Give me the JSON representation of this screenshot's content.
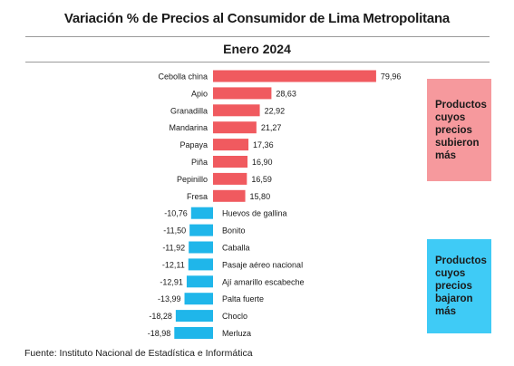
{
  "chart_data": {
    "type": "bar",
    "orientation": "horizontal",
    "title": "Variación %  de Precios al Consumidor de Lima Metropolitana",
    "subtitle": "Enero 2024",
    "categories": [
      "Cebolla china",
      "Apio",
      "Granadilla",
      "Mandarina",
      "Papaya",
      "Piña",
      "Pepinillo",
      "Fresa",
      "Huevos de gallina",
      "Bonito",
      "Caballa",
      "Pasaje aéreo nacional",
      "Ají amarillo escabeche",
      "Palta fuerte",
      "Choclo",
      "Merluza"
    ],
    "values": [
      79.96,
      28.63,
      22.92,
      21.27,
      17.36,
      16.9,
      16.59,
      15.8,
      -10.76,
      -11.5,
      -11.92,
      -12.11,
      -12.91,
      -13.99,
      -18.28,
      -18.98
    ],
    "value_labels": [
      "79,96",
      "28,63",
      "22,92",
      "21,27",
      "17,36",
      "16,90",
      "16,59",
      "15,80",
      "-10,76",
      "-11,50",
      "-11,92",
      "-12,11",
      "-12,91",
      "-13,99",
      "-18,28",
      "-18,98"
    ],
    "colors": {
      "positive": "#f05a5f",
      "negative": "#1fb6ea"
    }
  },
  "legend": {
    "up_text": "Productos cuyos precios subieron más",
    "down_text": "Productos cuyos precios bajaron más",
    "up_color": "#f6999d",
    "down_color": "#3fcbf6"
  },
  "source": "Fuente: Instituto Nacional de Estadística e Informática"
}
